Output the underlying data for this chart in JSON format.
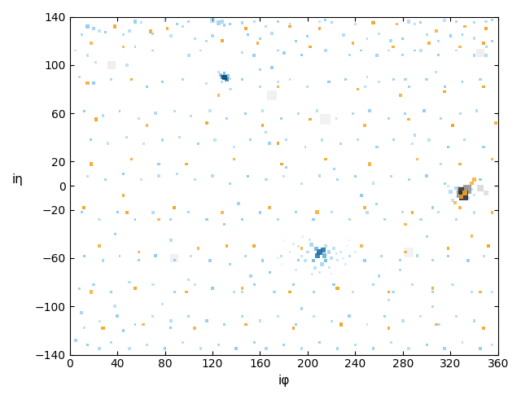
{
  "title": "",
  "xlabel": "iφ",
  "ylabel": "iη",
  "xlim": [
    0,
    360
  ],
  "ylim": [
    -140,
    140
  ],
  "xticks": [
    0,
    40,
    80,
    120,
    160,
    200,
    240,
    280,
    320,
    360
  ],
  "yticks": [
    -140,
    -100,
    -60,
    -20,
    0,
    20,
    60,
    100,
    140
  ],
  "background": "#ffffff",
  "figsize": [
    6.4,
    4.9
  ],
  "dpi": 100,
  "ecal_color": "#7bc4ed",
  "ecal_med_color": "#4da6d8",
  "ecal_dark_color": "#1a6fa8",
  "ecal_core_color": "#0d4f80",
  "hcal_color": "#f5a623",
  "gray_color": "#909090",
  "gray_light_color": "#c0c0c0",
  "dark_color": "#303030"
}
